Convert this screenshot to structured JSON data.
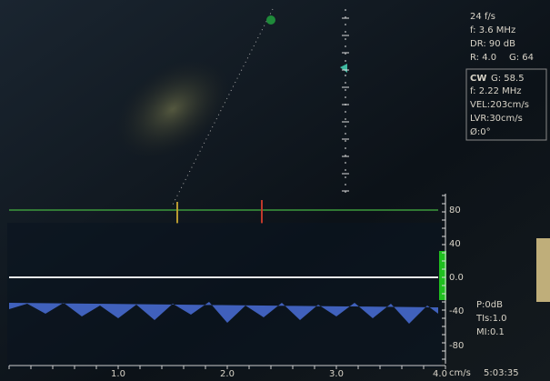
{
  "overlay_top": [
    "24 f/s",
    "f: 3.6 MHz",
    "DR: 90 dB",
    "R: 4.0",
    "G: 64"
  ],
  "doppler_settings": [
    "CW",
    "G: 58.5",
    "f: 2.22 MHz",
    "VEL:203cm/s",
    "LVR:30cm/s",
    "Ø:0°"
  ],
  "velocity_scale": {
    "labels": [
      "80",
      "40",
      "0.0",
      "-40",
      "-80"
    ],
    "unit": "cm/s"
  },
  "time_scale": {
    "labels": [
      "1.0",
      "2.0",
      "3.0",
      "4.0"
    ]
  },
  "output_info": [
    "P:0dB",
    "TIs:1.0",
    "MI:0.1"
  ],
  "clock": "5:03:35"
}
